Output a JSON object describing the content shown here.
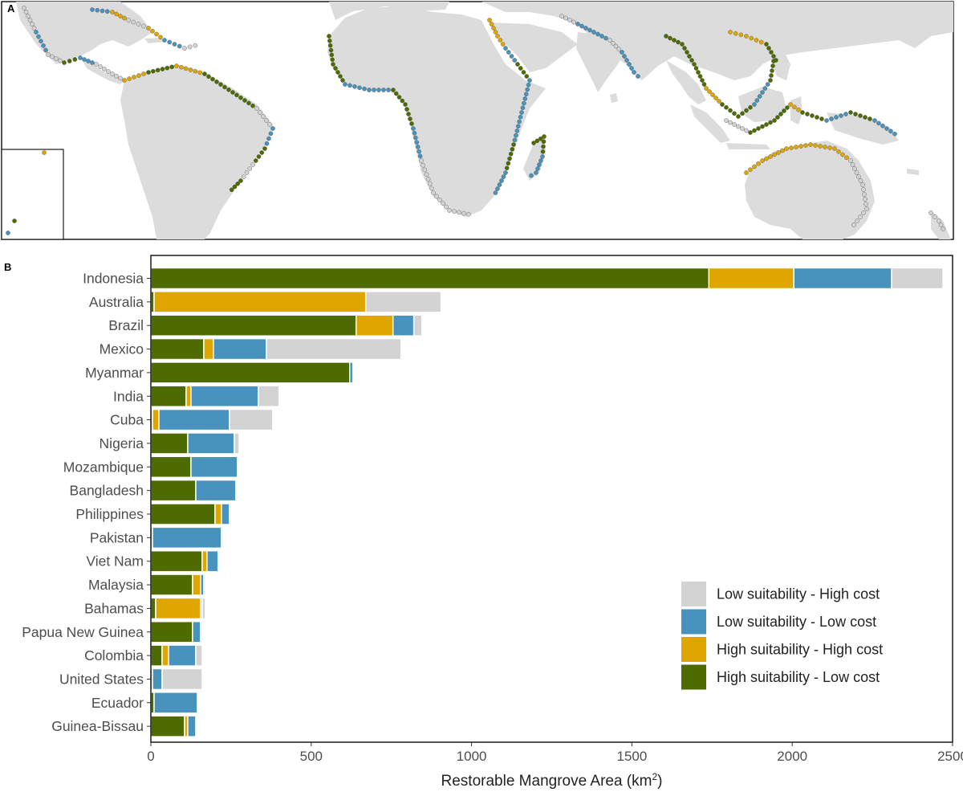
{
  "panels": {
    "map_letter": "A",
    "chart_letter": "B"
  },
  "colors": {
    "high_suitability_low_cost": "#4d6b00",
    "high_suitability_high_cost": "#e0a600",
    "low_suitability_low_cost": "#4893bd",
    "low_suitability_high_cost": "#d3d3d3",
    "land": "#dcdcdc",
    "frame": "#1a1a1a"
  },
  "map": {
    "legend_ref": "same four categories as panel B",
    "has_inset": true
  },
  "chart_data": {
    "type": "bar",
    "orientation": "horizontal",
    "stacked": true,
    "categories": [
      "Indonesia",
      "Australia",
      "Brazil",
      "Mexico",
      "Myanmar",
      "India",
      "Cuba",
      "Nigeria",
      "Mozambique",
      "Bangladesh",
      "Philippines",
      "Pakistan",
      "Viet Nam",
      "Malaysia",
      "Bahamas",
      "Papua New Guinea",
      "Colombia",
      "United States",
      "Ecuador",
      "Guinea-Bissau"
    ],
    "series": [
      {
        "name": "High suitability - Low cost",
        "color": "#4d6b00",
        "values": [
          1740,
          10,
          640,
          165,
          620,
          110,
          5,
          115,
          125,
          140,
          200,
          5,
          160,
          130,
          15,
          130,
          35,
          5,
          10,
          105
        ]
      },
      {
        "name": "High suitability - High cost",
        "color": "#e0a600",
        "values": [
          265,
          660,
          115,
          30,
          0,
          15,
          20,
          0,
          0,
          0,
          20,
          0,
          15,
          25,
          140,
          0,
          20,
          0,
          0,
          10
        ]
      },
      {
        "name": "Low suitability - Low cost",
        "color": "#4893bd",
        "values": [
          305,
          0,
          65,
          165,
          10,
          210,
          220,
          145,
          145,
          125,
          25,
          215,
          35,
          10,
          5,
          25,
          85,
          30,
          135,
          25
        ]
      },
      {
        "name": "Low suitability - High cost",
        "color": "#d3d3d3",
        "values": [
          160,
          235,
          25,
          420,
          0,
          65,
          135,
          15,
          0,
          0,
          5,
          5,
          5,
          5,
          10,
          5,
          20,
          125,
          0,
          0
        ]
      }
    ],
    "xlabel": "Restorable Mangrove Area (km",
    "xlabel_sup": "2",
    "xlabel_close": ")",
    "xlim": [
      0,
      2500
    ],
    "xticks": [
      "0",
      "500",
      "1000",
      "1500",
      "2000",
      "2500"
    ],
    "legend_placement": "bottom-right",
    "legend_order": [
      "Low suitability - High cost",
      "Low suitability - Low cost",
      "High suitability - High cost",
      "High suitability - Low cost"
    ],
    "grid": false
  }
}
